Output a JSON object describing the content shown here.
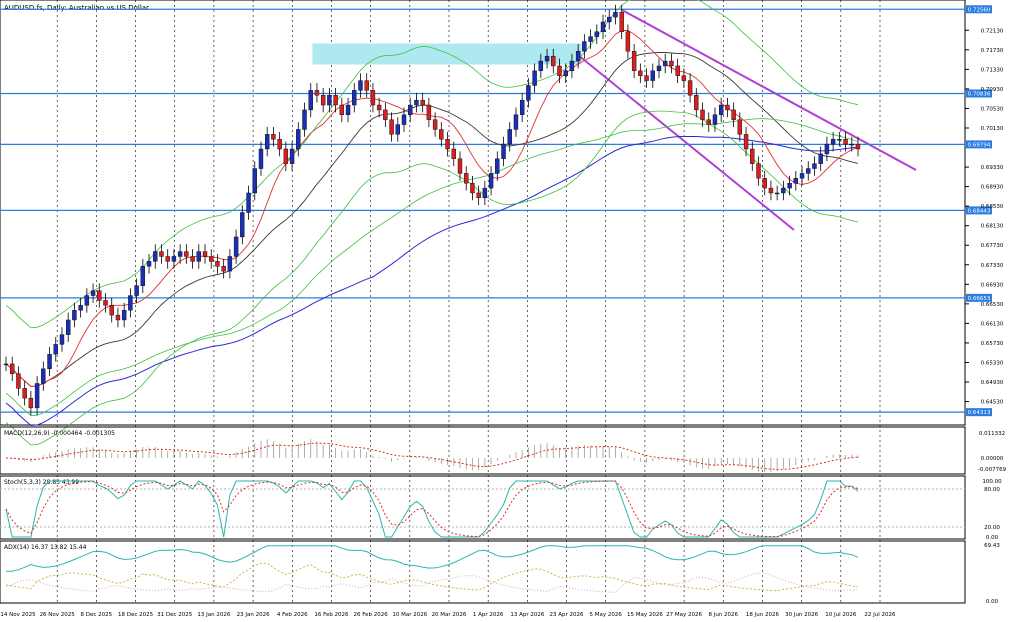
{
  "chart_data": [
    {
      "type": "candlestick",
      "title": "AUDUSD.fs, Daily: Australian vs US Dollar",
      "symbol": "AUDUSD.fs",
      "timeframe": "Daily",
      "price_axis_ticks": [
        "0.72130",
        "0.71730",
        "0.71330",
        "0.70930",
        "0.70530",
        "0.70130",
        "0.69330",
        "0.68930",
        "0.68530",
        "0.68130",
        "0.67730",
        "0.67330",
        "0.66930",
        "0.66530",
        "0.66130",
        "0.65730",
        "0.65330",
        "0.64930",
        "0.64530"
      ],
      "x_axis_labels": [
        "14 Nov 2025",
        "26 Nov 2025",
        "8 Dec 2025",
        "18 Dec 2025",
        "31 Dec 2025",
        "13 Jan 2026",
        "23 Jan 2026",
        "4 Feb 2026",
        "16 Feb 2026",
        "26 Feb 2026",
        "10 Mar 2026",
        "20 Mar 2026",
        "1 Apr 2026",
        "13 Apr 2026",
        "23 Apr 2026",
        "5 May 2026",
        "15 May 2026",
        "27 May 2026",
        "8 Jun 2026",
        "18 Jun 2026",
        "30 Jun 2026",
        "10 Jul 2026",
        "22 Jul 2026"
      ],
      "horizontal_levels": [
        "0.72560",
        "0.70836",
        "0.69794",
        "0.68443",
        "0.66653",
        "0.64313"
      ],
      "close_path": [
        0.653,
        0.651,
        0.648,
        0.646,
        0.644,
        0.649,
        0.652,
        0.655,
        0.657,
        0.659,
        0.662,
        0.664,
        0.665,
        0.667,
        0.668,
        0.666,
        0.665,
        0.663,
        0.662,
        0.664,
        0.667,
        0.669,
        0.673,
        0.674,
        0.676,
        0.675,
        0.674,
        0.675,
        0.676,
        0.675,
        0.674,
        0.676,
        0.675,
        0.674,
        0.673,
        0.672,
        0.675,
        0.679,
        0.684,
        0.688,
        0.693,
        0.697,
        0.7,
        0.699,
        0.697,
        0.694,
        0.697,
        0.701,
        0.705,
        0.709,
        0.708,
        0.706,
        0.708,
        0.706,
        0.704,
        0.706,
        0.709,
        0.711,
        0.709,
        0.706,
        0.705,
        0.703,
        0.7,
        0.702,
        0.704,
        0.706,
        0.707,
        0.706,
        0.703,
        0.701,
        0.699,
        0.697,
        0.695,
        0.692,
        0.69,
        0.688,
        0.687,
        0.689,
        0.692,
        0.695,
        0.698,
        0.701,
        0.704,
        0.707,
        0.71,
        0.713,
        0.715,
        0.716,
        0.714,
        0.712,
        0.713,
        0.715,
        0.717,
        0.719,
        0.72,
        0.721,
        0.723,
        0.724,
        0.725,
        0.721,
        0.717,
        0.713,
        0.712,
        0.711,
        0.713,
        0.714,
        0.715,
        0.714,
        0.712,
        0.711,
        0.708,
        0.705,
        0.703,
        0.702,
        0.704,
        0.706,
        0.705,
        0.703,
        0.7,
        0.697,
        0.694,
        0.691,
        0.689,
        0.688,
        0.688,
        0.689,
        0.69,
        0.691,
        0.692,
        0.693,
        0.694,
        0.696,
        0.698,
        0.699,
        0.699,
        0.698,
        0.698,
        0.697
      ],
      "legend_labels": [
        "MACD(12,26,9) -0.000464 -0.001305",
        "Stoch(5,3,3) 28.83 43.99",
        "ADX(14) 16.37 13.82 15.44"
      ],
      "macd_axis_ticks": [
        "0.011332",
        "0.00000",
        "-0.007769"
      ],
      "stoch_axis_ticks": [
        "100.00",
        "80.00",
        "20.00",
        "0.00"
      ],
      "adx_axis_ticks": [
        "69.43",
        "0.00"
      ]
    }
  ]
}
